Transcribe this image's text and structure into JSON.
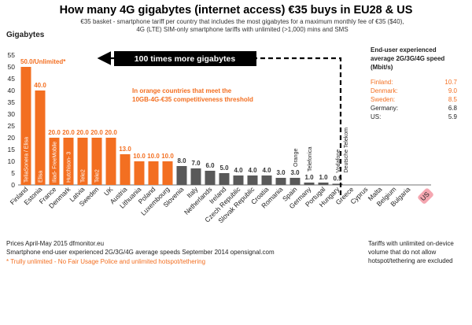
{
  "colors": {
    "orange": "#f36f21",
    "gray": "#595959",
    "us_pink": "#f4a6b0",
    "us_text": "#e8304a"
  },
  "chart_data": {
    "type": "bar",
    "title": "How many 4G gigabytes (internet access) €35 buys in EU28 & US",
    "subtitle_lines": [
      "€35 basket - smartphone tariff per country that includes the most gigabytes for a maximum monthly fee of €35 ($40),",
      "4G (LTE) SIM-only smartphone tariffs with unlimited (>1,000) mins and SMS"
    ],
    "ylabel": "Gigabytes",
    "ylim": [
      0,
      55
    ],
    "yticks": [
      0,
      5,
      10,
      15,
      20,
      25,
      30,
      35,
      40,
      45,
      50,
      55
    ],
    "categories": [
      "Finland",
      "Estonia",
      "France",
      "Denmark",
      "Latvia",
      "Sweden",
      "UK",
      "Austria",
      "Lithuania",
      "Poland",
      "Luxembourg",
      "Slovenia",
      "Italy",
      "Netherlands",
      "Ireland",
      "Czech Republic",
      "Slovak Republic",
      "Croatia",
      "Romania",
      "Spain",
      "Germany",
      "Portugal",
      "Hungary",
      "Greece",
      "Cyprus",
      "Malta",
      "Belgium",
      "Bulgaria",
      "US"
    ],
    "values": [
      50.0,
      40.0,
      20.0,
      20.0,
      20.0,
      20.0,
      20.0,
      13.0,
      10.0,
      10.0,
      10.0,
      8.0,
      7.0,
      6.0,
      5.0,
      4.0,
      4.0,
      4.0,
      3.0,
      3.0,
      1.0,
      1.0,
      0.5,
      0,
      0,
      0,
      0,
      0,
      0
    ],
    "value_labels": [
      "50.0/Unlimited*",
      "40.0",
      "20.0",
      "20.0",
      "20.0",
      "20.0",
      "20.0",
      "13.0",
      "10.0",
      "10.0",
      "10.0",
      "8.0",
      "7.0",
      "6.0",
      "5.0",
      "4.0",
      "4.0",
      "4.0",
      "3.0",
      "3.0",
      "1.0",
      "1.0",
      "0.5",
      "",
      "",
      "",
      "",
      "",
      ""
    ],
    "threshold_group": [
      true,
      true,
      true,
      true,
      true,
      true,
      true,
      true,
      true,
      true,
      true,
      false,
      false,
      false,
      false,
      false,
      false,
      false,
      false,
      false,
      false,
      false,
      false,
      false,
      false,
      false,
      false,
      false,
      false
    ],
    "operator_labels_inside": [
      {
        "index": 0,
        "text": "TeliaSonera / Elisa"
      },
      {
        "index": 1,
        "text": "Elisa"
      },
      {
        "index": 2,
        "text": "Iliad- FreeMobile"
      },
      {
        "index": 3,
        "text": "Hutchison- 3"
      },
      {
        "index": 4,
        "text": "Tele2"
      },
      {
        "index": 5,
        "text": "Tele2"
      }
    ],
    "operator_labels_above": [
      {
        "index": 19,
        "text": "Orange"
      },
      {
        "index": 20,
        "text": "Telefonica"
      },
      {
        "index": 22,
        "text": "Vodafone"
      },
      {
        "index": 22,
        "text": "Deutsche Telekom"
      }
    ],
    "grid": false,
    "legend": "none"
  },
  "annotations": {
    "callout": "100 times more gigabytes",
    "threshold_lines": [
      "In orange countries that meet the",
      "10GB-4G-€35 competitiveness threshold"
    ],
    "speed_header_lines": [
      "End-user experienced",
      "average 2G/3G/4G speed",
      "(Mbit/s)"
    ],
    "speed_rows": [
      {
        "country": "Finland:",
        "value": "10.7",
        "highlight": true
      },
      {
        "country": "Denmark:",
        "value": "9.0",
        "highlight": true
      },
      {
        "country": "Sweden:",
        "value": "8.5",
        "highlight": true
      },
      {
        "country": "Germany:",
        "value": "6.8",
        "highlight": false
      },
      {
        "country": "US:",
        "value": "5.9",
        "highlight": false
      }
    ],
    "footer_left": [
      "Prices April-May 2015 dfmonitor.eu",
      "Smartphone end-user experienced 2G/3G/4G average  speeds September 2014 opensignal.com"
    ],
    "footer_asterisk": "* Trully unlimited - No Fair Usage Police and unlimited hotspot/tethering",
    "footer_right": [
      "Tariffs with unlimited on-device",
      "volume that do not allow",
      "hotspot/tethering are excluded"
    ]
  }
}
